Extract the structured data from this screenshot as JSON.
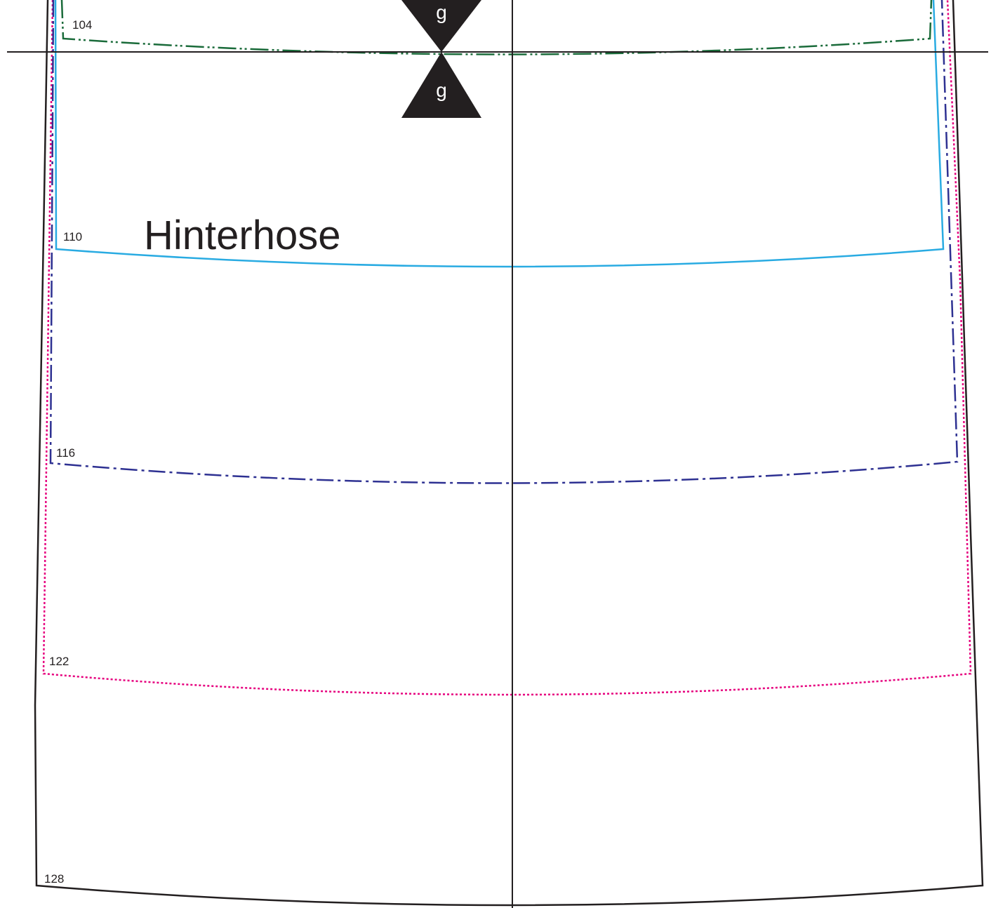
{
  "pattern": {
    "piece_name": "Hinterhose",
    "notch_letter": "g",
    "sizes": [
      {
        "label": "104",
        "color": "#1a6b3a",
        "line_style": "dash-dot-dot"
      },
      {
        "label": "110",
        "color": "#29abe2",
        "line_style": "solid"
      },
      {
        "label": "116",
        "color": "#2e3192",
        "line_style": "dash-dot"
      },
      {
        "label": "122",
        "color": "#e6007e",
        "line_style": "dotted"
      },
      {
        "label": "128",
        "color": "#231f20",
        "line_style": "solid"
      }
    ],
    "guide_color": "#231f20"
  }
}
